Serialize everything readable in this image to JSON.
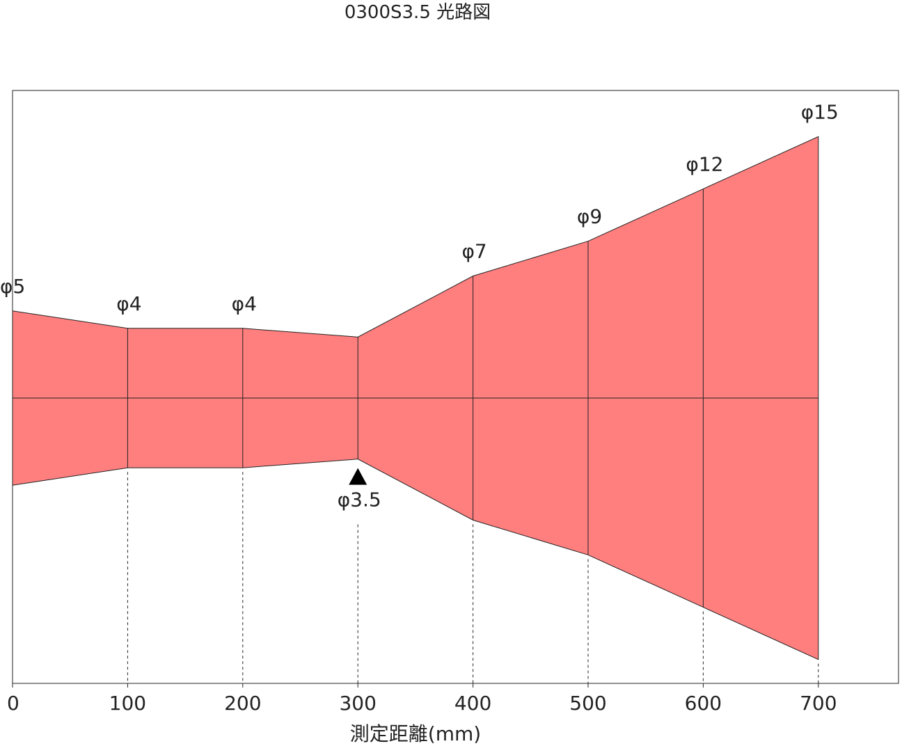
{
  "title": "0300S3.5 光路図",
  "xlabel": "測定距離(mm)",
  "colors": {
    "beam_fill": "#ff7f7f",
    "line": "#222222",
    "marker": "#000000"
  },
  "chart_data": {
    "type": "area",
    "title": "0300S3.5 光路図",
    "xlabel": "測定距離(mm)",
    "xlim": [
      0,
      700
    ],
    "x_ticks": [
      "0",
      "100",
      "200",
      "300",
      "400",
      "500",
      "600",
      "700"
    ],
    "x": [
      0,
      100,
      200,
      300,
      400,
      500,
      600,
      700
    ],
    "diameter_labels": [
      "φ5",
      "φ4",
      "φ4",
      "φ3.5",
      "φ7",
      "φ9",
      "φ12",
      "φ15"
    ],
    "diameter": [
      5,
      4,
      4,
      3.5,
      7,
      9,
      12,
      15
    ],
    "spot_marker": {
      "x": 300,
      "label": "φ3.5"
    }
  }
}
